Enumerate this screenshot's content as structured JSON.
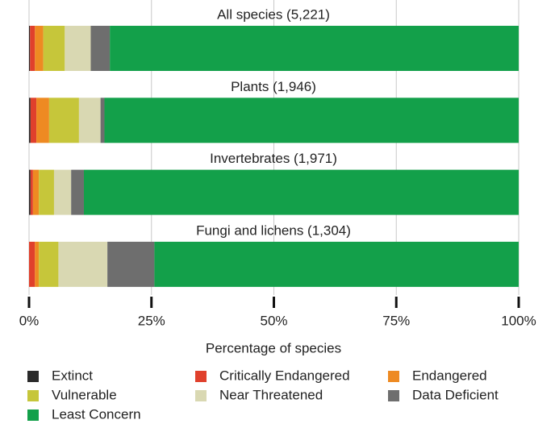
{
  "chart_data": {
    "type": "stacked-bar-horizontal",
    "categories": [
      "All species (5,221)",
      "Plants (1,946)",
      "Invertebrates (1,971)",
      "Fungi and lichens (1,304)"
    ],
    "series": [
      {
        "name": "Extinct",
        "color": "#2a2a2a",
        "values": [
          0.2,
          0.3,
          0.3,
          0
        ]
      },
      {
        "name": "Critically Endangered",
        "color": "#e0402c",
        "values": [
          1.0,
          1.2,
          0.5,
          1.2
        ]
      },
      {
        "name": "Endangered",
        "color": "#ee8a22",
        "values": [
          1.7,
          2.6,
          1.2,
          0.8
        ]
      },
      {
        "name": "Vulnerable",
        "color": "#c6c63a",
        "values": [
          4.4,
          6.1,
          3.1,
          4.0
        ]
      },
      {
        "name": "Near Threatened",
        "color": "#d9d8b2",
        "values": [
          5.3,
          4.4,
          3.5,
          10.0
        ]
      },
      {
        "name": "Data Deficient",
        "color": "#6e6e6e",
        "values": [
          3.9,
          0.8,
          2.6,
          9.6
        ]
      },
      {
        "name": "Least Concern",
        "color": "#13a04a",
        "values": [
          83.5,
          84.6,
          88.8,
          74.4
        ]
      }
    ],
    "xlabel": "Percentage of species",
    "xlim": [
      0,
      100
    ],
    "xticks": [
      {
        "value": 0,
        "label": "0%"
      },
      {
        "value": 25,
        "label": "25%"
      },
      {
        "value": 50,
        "label": "50%"
      },
      {
        "value": 75,
        "label": "75%"
      },
      {
        "value": 100,
        "label": "100%"
      }
    ],
    "grid": true
  }
}
